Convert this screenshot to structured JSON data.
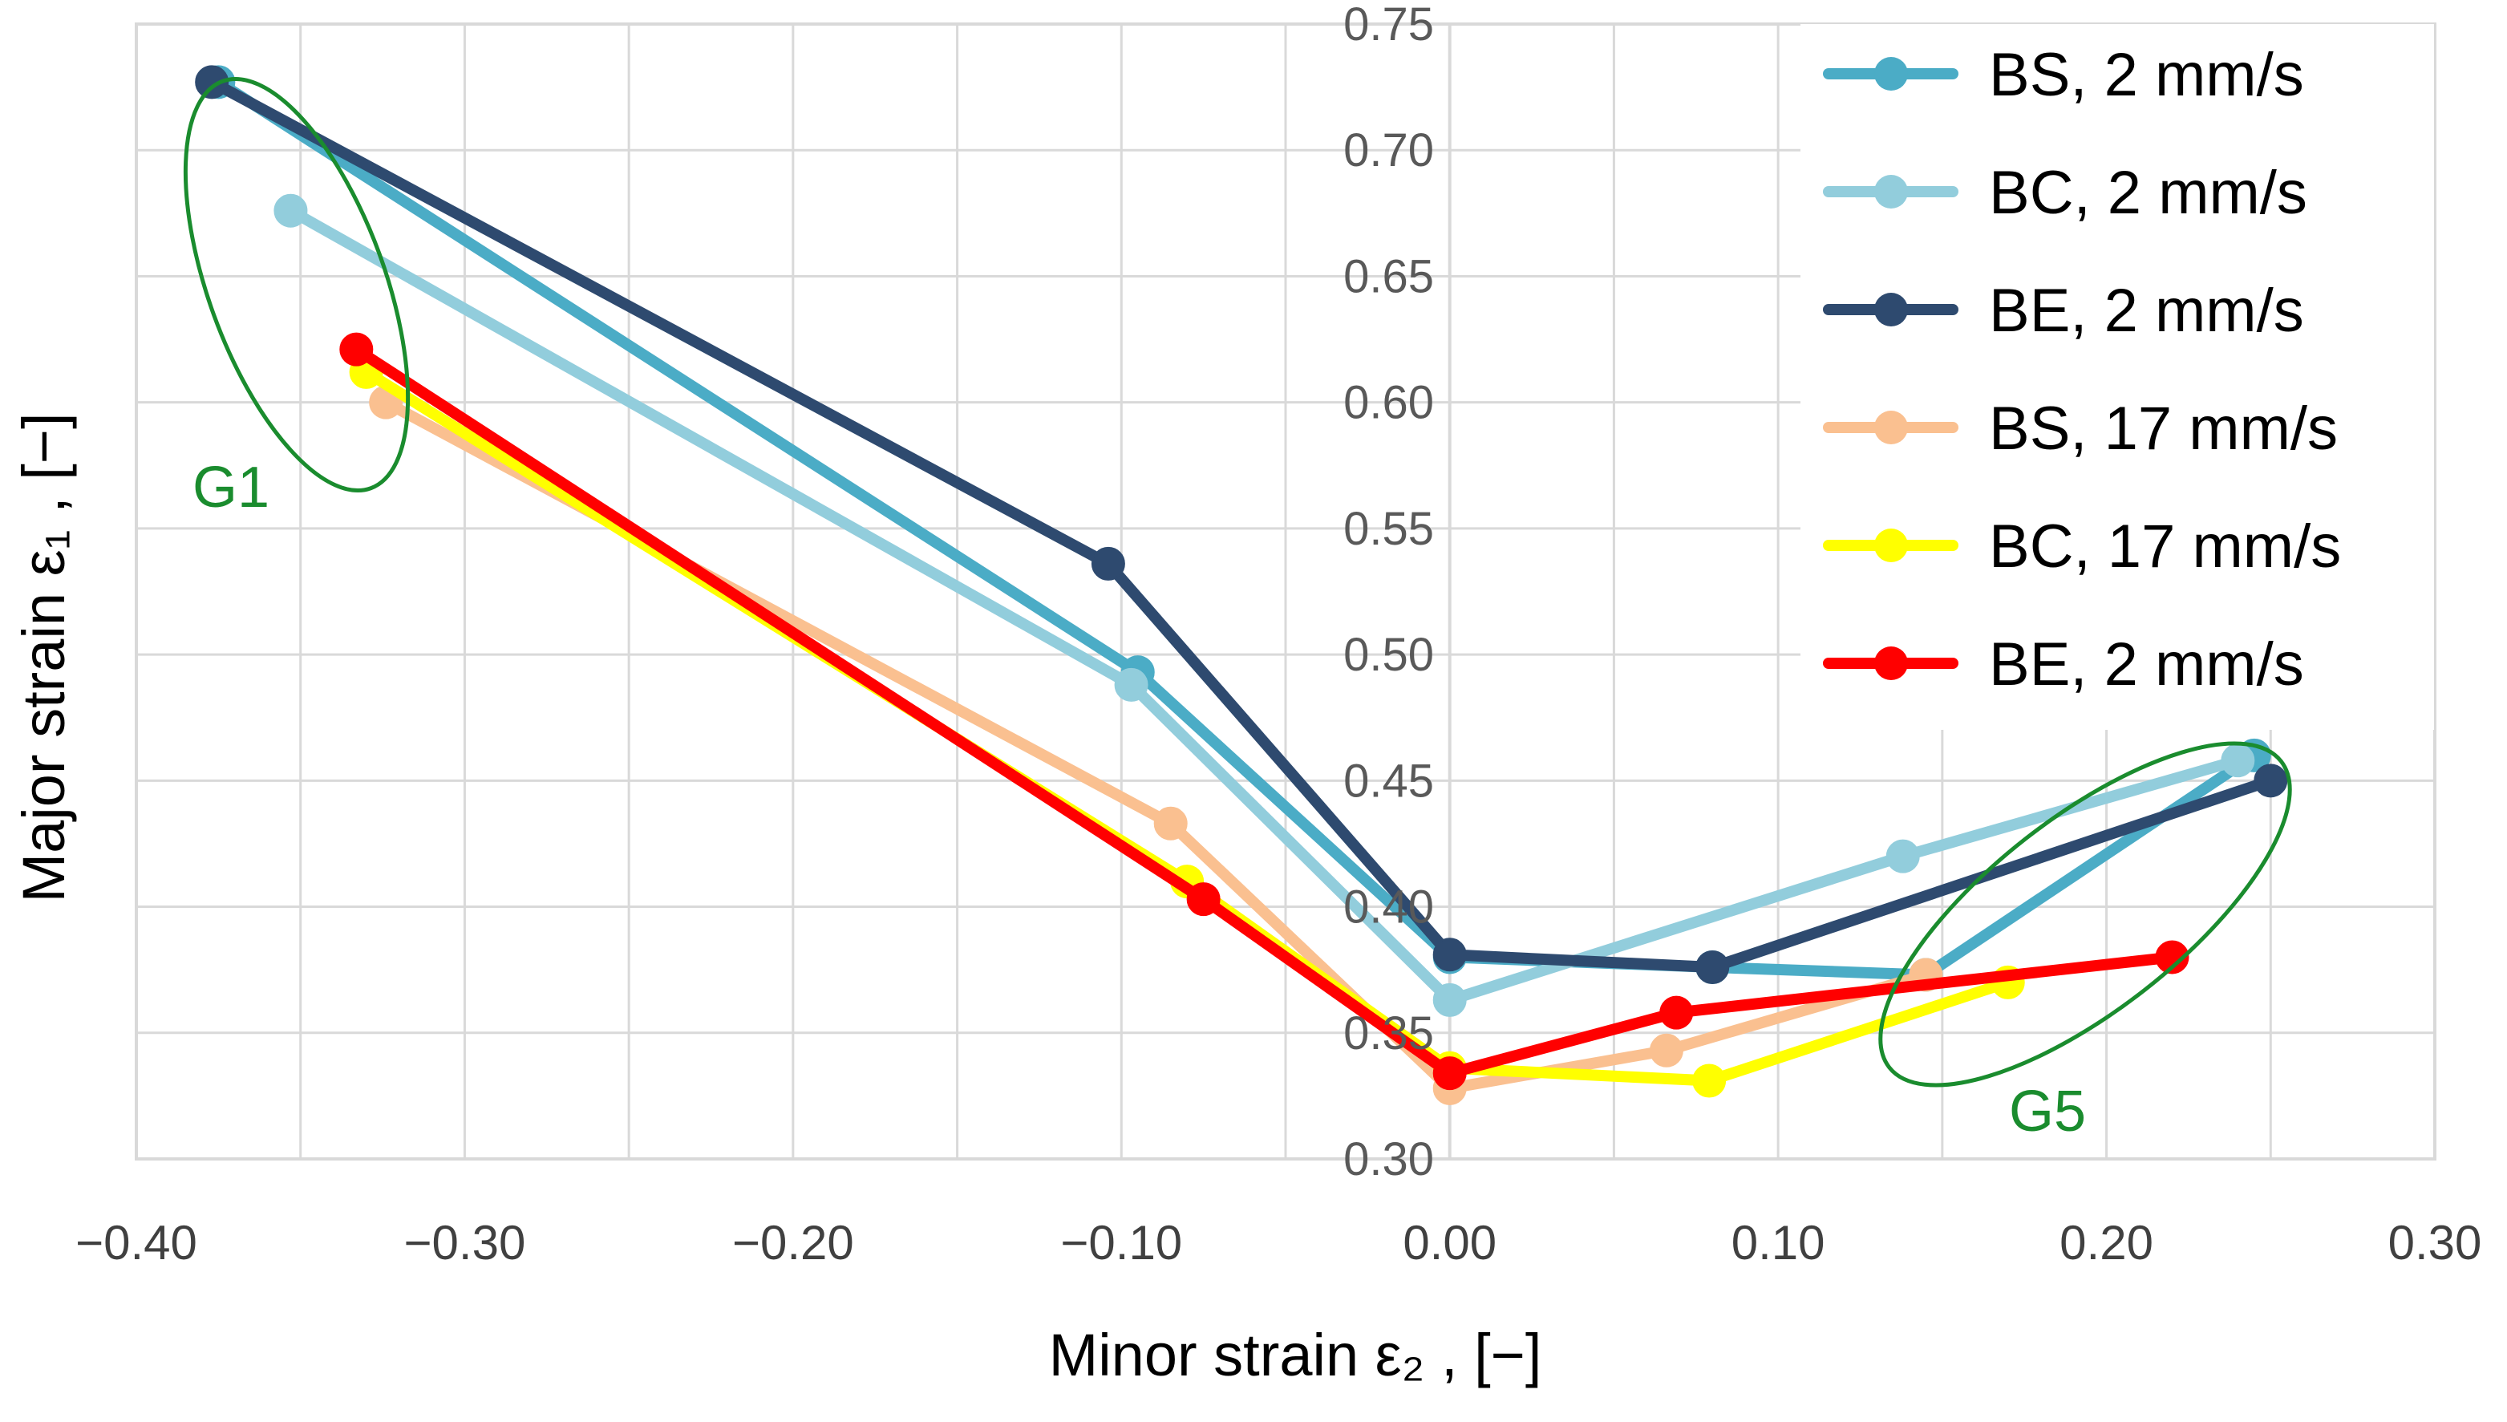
{
  "chart_data": {
    "type": "line",
    "xlabel": "Minor strain ε₂ , [−]",
    "ylabel": "Major strain ε₁ , [−]",
    "xlim": [
      -0.4,
      0.3
    ],
    "ylim": [
      0.3,
      0.75
    ],
    "x_ticks": [
      "−0.40",
      "−0.30",
      "−0.20",
      "−0.10",
      "0.00",
      "0.10",
      "0.20",
      "0.30"
    ],
    "y_ticks": [
      "0.30",
      "0.35",
      "0.40",
      "0.45",
      "0.50",
      "0.55",
      "0.60",
      "0.65",
      "0.70",
      "0.75"
    ],
    "grid": true,
    "legend_position": "top-right",
    "series": [
      {
        "name": "BS, 2 mm/s",
        "color": "#4bacc6",
        "points": [
          [
            -0.375,
            0.727
          ],
          [
            -0.095,
            0.493
          ],
          [
            0.0,
            0.38
          ],
          [
            0.08,
            0.376
          ],
          [
            0.145,
            0.373
          ],
          [
            0.245,
            0.46
          ]
        ]
      },
      {
        "name": "BC, 2 mm/s",
        "color": "#92cddc",
        "points": [
          [
            -0.353,
            0.676
          ],
          [
            -0.097,
            0.488
          ],
          [
            0.0,
            0.363
          ],
          [
            0.138,
            0.42
          ],
          [
            0.24,
            0.458
          ]
        ]
      },
      {
        "name": "BE, 2 mm/s",
        "color": "#2e4a6f",
        "points": [
          [
            -0.377,
            0.727
          ],
          [
            -0.104,
            0.536
          ],
          [
            0.0,
            0.381
          ],
          [
            0.08,
            0.376
          ],
          [
            0.25,
            0.45
          ]
        ]
      },
      {
        "name": "BS, 17 mm/s",
        "color": "#fac090",
        "points": [
          [
            -0.324,
            0.6
          ],
          [
            -0.085,
            0.433
          ],
          [
            0.0,
            0.328
          ],
          [
            0.066,
            0.343
          ],
          [
            0.145,
            0.373
          ]
        ]
      },
      {
        "name": "BC, 17 mm/s",
        "color": "#ffff00",
        "points": [
          [
            -0.33,
            0.612
          ],
          [
            -0.08,
            0.41
          ],
          [
            0.0,
            0.336
          ],
          [
            0.079,
            0.331
          ],
          [
            0.17,
            0.37
          ]
        ]
      },
      {
        "name": "BE, 2 mm/s",
        "color": "#ff0000",
        "points": [
          [
            -0.333,
            0.621
          ],
          [
            -0.075,
            0.403
          ],
          [
            0.0,
            0.334
          ],
          [
            0.069,
            0.358
          ],
          [
            0.22,
            0.38
          ]
        ]
      }
    ],
    "annotations": [
      {
        "label": "G1",
        "color": "#1a8c2e"
      },
      {
        "label": "G5",
        "color": "#1a8c2e"
      }
    ]
  }
}
